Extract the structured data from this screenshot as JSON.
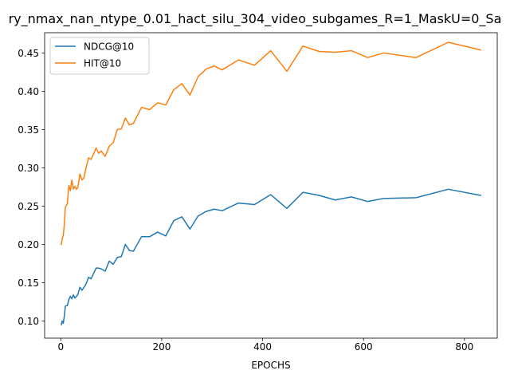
{
  "chart_data": {
    "type": "line",
    "title": "ry_nmax_nan_ntype_0.01_hact_silu_304_video_subgames_R=1_MaskU=0_Sa",
    "xlabel": "EPOCHS",
    "ylabel": "",
    "xlim": [
      -32,
      865
    ],
    "ylim": [
      0.0775,
      0.4765
    ],
    "xticks": [
      0,
      200,
      400,
      600,
      800
    ],
    "xtick_labels": [
      "0",
      "200",
      "400",
      "600",
      "800"
    ],
    "yticks": [
      0.1,
      0.15,
      0.2,
      0.25,
      0.3,
      0.35,
      0.4,
      0.45
    ],
    "ytick_labels": [
      "0.10",
      "0.15",
      "0.20",
      "0.25",
      "0.30",
      "0.35",
      "0.40",
      "0.45"
    ],
    "grid": false,
    "legend_position": "top-left",
    "series": [
      {
        "name": "NDCG@10",
        "color": "#1f77b4",
        "x": [
          1,
          3,
          5,
          7,
          9,
          11,
          13,
          16,
          19,
          22,
          25,
          28,
          31,
          34,
          38,
          42,
          46,
          50,
          55,
          60,
          65,
          70,
          75,
          80,
          88,
          96,
          104,
          112,
          120,
          128,
          136,
          144,
          160,
          176,
          192,
          208,
          224,
          240,
          256,
          272,
          288,
          304,
          320,
          352,
          384,
          416,
          448,
          480,
          512,
          544,
          576,
          608,
          640,
          704,
          768,
          832
        ],
        "y": [
          0.095,
          0.1,
          0.097,
          0.106,
          0.119,
          0.12,
          0.12,
          0.128,
          0.132,
          0.129,
          0.134,
          0.13,
          0.132,
          0.135,
          0.144,
          0.14,
          0.144,
          0.148,
          0.157,
          0.155,
          0.162,
          0.169,
          0.169,
          0.168,
          0.165,
          0.178,
          0.174,
          0.183,
          0.184,
          0.2,
          0.192,
          0.191,
          0.21,
          0.21,
          0.216,
          0.211,
          0.231,
          0.236,
          0.22,
          0.237,
          0.243,
          0.246,
          0.244,
          0.254,
          0.252,
          0.265,
          0.247,
          0.268,
          0.264,
          0.258,
          0.262,
          0.256,
          0.26,
          0.261,
          0.272,
          0.264
        ]
      },
      {
        "name": "HIT@10",
        "color": "#ff7f0e",
        "x": [
          1,
          3,
          5,
          7,
          9,
          11,
          13,
          16,
          19,
          22,
          25,
          28,
          31,
          34,
          38,
          42,
          46,
          50,
          55,
          60,
          65,
          70,
          75,
          80,
          88,
          96,
          104,
          112,
          120,
          128,
          136,
          144,
          160,
          176,
          192,
          208,
          224,
          240,
          256,
          272,
          288,
          304,
          320,
          352,
          384,
          416,
          448,
          480,
          512,
          544,
          576,
          608,
          640,
          704,
          768,
          832
        ],
        "y": [
          0.2,
          0.208,
          0.212,
          0.226,
          0.248,
          0.251,
          0.253,
          0.277,
          0.27,
          0.284,
          0.272,
          0.276,
          0.272,
          0.275,
          0.292,
          0.284,
          0.287,
          0.3,
          0.313,
          0.311,
          0.318,
          0.326,
          0.319,
          0.322,
          0.315,
          0.328,
          0.333,
          0.35,
          0.351,
          0.365,
          0.356,
          0.358,
          0.379,
          0.376,
          0.385,
          0.382,
          0.402,
          0.41,
          0.395,
          0.419,
          0.429,
          0.433,
          0.428,
          0.441,
          0.434,
          0.453,
          0.426,
          0.459,
          0.452,
          0.451,
          0.453,
          0.444,
          0.45,
          0.444,
          0.464,
          0.454
        ]
      }
    ]
  }
}
